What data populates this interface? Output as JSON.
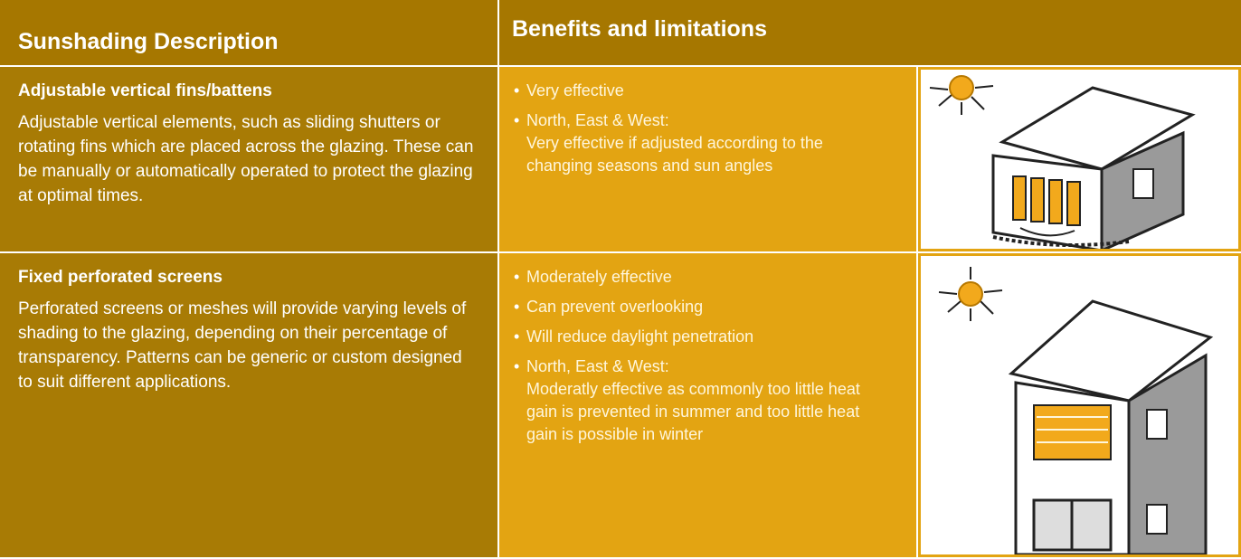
{
  "header": {
    "columns": [
      "Sunshading Description",
      "Benefits and limitations"
    ]
  },
  "rows": [
    {
      "title": "Adjustable vertical fins/battens",
      "description": "Adjustable vertical  elements, such as sliding shutters or rotating fins which are placed across the glazing. These can be manually or automatically operated to protect the glazing at optimal times.",
      "benefits": [
        {
          "text": "Very effective"
        },
        {
          "text": "North, East & West:",
          "detail": "Very effective if adjusted according to the changing seasons and sun angles"
        }
      ]
    },
    {
      "title": "Fixed perforated screens",
      "description": "Perforated screens or meshes will provide varying levels of shading to the glazing, depending on their percentage of transparency. Patterns can be generic or custom designed to suit different applications.",
      "benefits": [
        {
          "text": "Moderately effective"
        },
        {
          "text": "Can prevent overlooking"
        },
        {
          "text": "Will reduce daylight penetration"
        },
        {
          "text": "North, East & West:",
          "detail": "Moderatly effective as commonly too little heat gain is prevented in summer and too little heat gain is possible in winter"
        }
      ]
    }
  ]
}
